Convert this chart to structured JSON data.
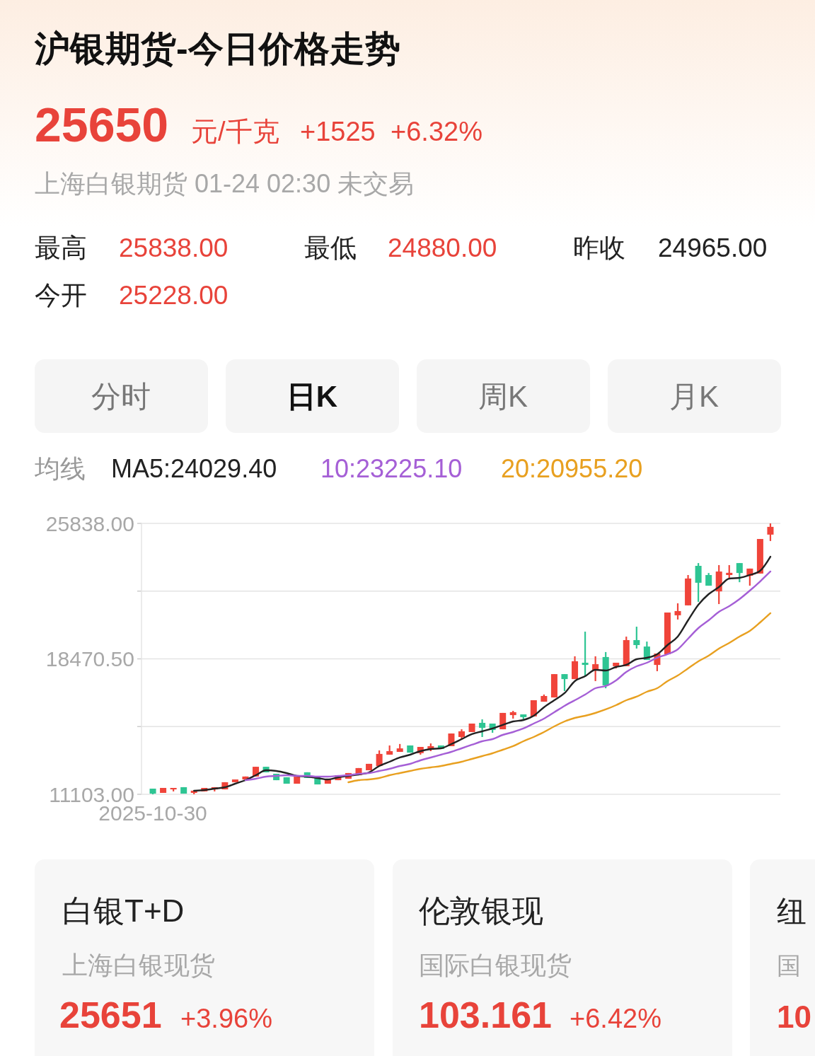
{
  "chart_data": {
    "type": "candlestick",
    "title": "沪银期货-今日价格走势",
    "categories": [
      "2025-10-30",
      null,
      null,
      null,
      null,
      null,
      null,
      null,
      null,
      null,
      null,
      null,
      null,
      null,
      null,
      null,
      null,
      null,
      null,
      null,
      null,
      null,
      null,
      null,
      null,
      null,
      null,
      null,
      null,
      null,
      null,
      null,
      null,
      null,
      null,
      null,
      null,
      null,
      null,
      null,
      null,
      null,
      null,
      null,
      null,
      null,
      null,
      null,
      null,
      null,
      null,
      null,
      null,
      null,
      null,
      null,
      null,
      null,
      null,
      null,
      null
    ],
    "ohlc": [
      [
        11410,
        11410,
        11103,
        11140
      ],
      [
        11180,
        11450,
        11180,
        11450
      ],
      [
        11370,
        11450,
        11260,
        11450
      ],
      [
        11490,
        11490,
        11140,
        11140
      ],
      [
        11180,
        11300,
        11103,
        11300
      ],
      [
        11260,
        11450,
        11260,
        11450
      ],
      [
        11370,
        11490,
        11260,
        11490
      ],
      [
        11370,
        11760,
        11370,
        11760
      ],
      [
        11760,
        11910,
        11760,
        11910
      ],
      [
        11910,
        12070,
        11910,
        12070
      ],
      [
        12070,
        12600,
        12070,
        12600
      ],
      [
        12600,
        12600,
        12300,
        12300
      ],
      [
        12220,
        12220,
        11870,
        11870
      ],
      [
        12030,
        12030,
        11680,
        11680
      ],
      [
        11680,
        12140,
        11680,
        12140
      ],
      [
        12300,
        12300,
        11990,
        11990
      ],
      [
        12070,
        12070,
        11640,
        11640
      ],
      [
        11680,
        11910,
        11680,
        11910
      ],
      [
        11870,
        12140,
        11870,
        12140
      ],
      [
        11950,
        12260,
        11950,
        12260
      ],
      [
        12140,
        12530,
        12140,
        12530
      ],
      [
        12410,
        12760,
        12410,
        12760
      ],
      [
        12640,
        13490,
        12640,
        13300
      ],
      [
        13260,
        13760,
        13260,
        13450
      ],
      [
        13410,
        13840,
        13410,
        13600
      ],
      [
        13760,
        13760,
        13370,
        13370
      ],
      [
        13340,
        13680,
        13260,
        13680
      ],
      [
        13570,
        13870,
        13450,
        13720
      ],
      [
        13760,
        13760,
        13570,
        13570
      ],
      [
        13720,
        14410,
        13720,
        14410
      ],
      [
        14220,
        14640,
        14070,
        14530
      ],
      [
        14490,
        14950,
        14490,
        14950
      ],
      [
        14990,
        15180,
        14220,
        14720
      ],
      [
        14950,
        14950,
        14450,
        14600
      ],
      [
        14640,
        15530,
        14640,
        15530
      ],
      [
        15410,
        15640,
        15220,
        15570
      ],
      [
        15450,
        15450,
        15100,
        15300
      ],
      [
        15340,
        16220,
        15340,
        16220
      ],
      [
        16140,
        16530,
        16140,
        16450
      ],
      [
        16370,
        17640,
        16370,
        17640
      ],
      [
        17640,
        17640,
        16720,
        17370
      ],
      [
        17370,
        18610,
        17370,
        18340
      ],
      [
        18260,
        19950,
        17490,
        18140
      ],
      [
        17870,
        18610,
        17260,
        18180
      ],
      [
        18570,
        18840,
        16870,
        17030
      ],
      [
        18070,
        18260,
        17950,
        18260
      ],
      [
        18070,
        19680,
        18070,
        19490
      ],
      [
        19490,
        20220,
        19030,
        19220
      ],
      [
        19140,
        19410,
        18410,
        18410
      ],
      [
        18140,
        18760,
        17800,
        18760
      ],
      [
        18720,
        20990,
        18720,
        20990
      ],
      [
        20840,
        21490,
        20610,
        21070
      ],
      [
        21380,
        23030,
        21380,
        22840
      ],
      [
        23530,
        23680,
        21570,
        22610
      ],
      [
        23030,
        23140,
        22450,
        22450
      ],
      [
        22140,
        23570,
        21450,
        23220
      ],
      [
        23030,
        23570,
        22800,
        23150
      ],
      [
        23680,
        23680,
        22640,
        23140
      ],
      [
        22990,
        23380,
        22450,
        23380
      ],
      [
        23110,
        24990,
        23110,
        24990
      ],
      [
        25228,
        25838,
        24880,
        25650
      ]
    ],
    "colors": [
      "#2ec593",
      "#f0443a",
      "#f0443a",
      "#2ec593",
      "#f0443a",
      "#f0443a",
      "#f0443a",
      "#f0443a",
      "#f0443a",
      "#f0443a",
      "#f0443a",
      "#2ec593",
      "#2ec593",
      "#2ec593",
      "#f0443a",
      "#2ec593",
      "#2ec593",
      "#f0443a",
      "#f0443a",
      "#f0443a",
      "#f0443a",
      "#f0443a",
      "#f0443a",
      "#f0443a",
      "#f0443a",
      "#2ec593",
      "#f0443a",
      "#f0443a",
      "#2ec593",
      "#f0443a",
      "#f0443a",
      "#f0443a",
      "#2ec593",
      "#2ec593",
      "#f0443a",
      "#f0443a",
      "#2ec593",
      "#f0443a",
      "#f0443a",
      "#f0443a",
      "#2ec593",
      "#f0443a",
      "#2ec593",
      "#f0443a",
      "#2ec593",
      "#f0443a",
      "#f0443a",
      "#2ec593",
      "#2ec593",
      "#f0443a",
      "#f0443a",
      "#f0443a",
      "#f0443a",
      "#2ec593",
      "#2ec593",
      "#f0443a",
      "#f0443a",
      "#2ec593",
      "#f0443a",
      "#f0443a",
      "#f0443a"
    ],
    "series": [
      {
        "type": "line",
        "name": "MA5:24029.40",
        "color": "#222222",
        "values": [
          null,
          null,
          null,
          null,
          11296,
          11334,
          11411,
          11488,
          11680,
          11873,
          12142,
          12411,
          12373,
          12258,
          12104,
          12065,
          11988,
          11911,
          12027,
          12104,
          12181,
          12296,
          12642,
          12873,
          13104,
          13258,
          13451,
          13566,
          13604,
          13835,
          14104,
          14374,
          14528,
          14682,
          14874,
          15066,
          15143,
          15374,
          15836,
          16220,
          16605,
          17259,
          17528,
          17874,
          17836,
          18028,
          18144,
          18452,
          18529,
          18721,
          19221,
          19683,
          20568,
          21414,
          21991,
          22376,
          22837,
          22876,
          23030,
          23260,
          24029.4
        ]
      },
      {
        "type": "line",
        "name": "10:23225.10",
        "color": "#a55fd6",
        "values": [
          null,
          null,
          null,
          null,
          null,
          null,
          null,
          null,
          null,
          11873,
          11950,
          12065,
          12104,
          12142,
          12104,
          12104,
          12065,
          12065,
          12104,
          12142,
          12219,
          12258,
          12373,
          12489,
          12642,
          12758,
          12950,
          13104,
          13258,
          13412,
          13604,
          13797,
          13989,
          14104,
          14335,
          14489,
          14682,
          14951,
          15220,
          15566,
          15913,
          16220,
          16528,
          16874,
          16990,
          17298,
          17759,
          18067,
          18259,
          18529,
          18721,
          18990,
          19567,
          20144,
          20567,
          21029,
          21337,
          21722,
          22183,
          22683,
          23225.1
        ]
      },
      {
        "type": "line",
        "name": "20:20955.20",
        "color": "#e8a020",
        "values": [
          null,
          null,
          null,
          null,
          null,
          null,
          null,
          null,
          null,
          null,
          null,
          null,
          null,
          null,
          null,
          null,
          null,
          null,
          null,
          11757,
          11873,
          11911,
          11988,
          12142,
          12258,
          12373,
          12489,
          12565,
          12642,
          12758,
          12873,
          13027,
          13181,
          13335,
          13527,
          13720,
          13989,
          14220,
          14489,
          14797,
          15066,
          15258,
          15374,
          15528,
          15720,
          15951,
          16220,
          16413,
          16682,
          16874,
          17259,
          17567,
          17951,
          18336,
          18644,
          19029,
          19337,
          19683,
          19991,
          20452,
          20955.2
        ]
      }
    ],
    "legend": "top left",
    "legend_title": "均线",
    "ylim": [
      11103,
      25838
    ],
    "yticks": [
      {
        "value": 25838,
        "label": "25838.00"
      },
      {
        "value": 22154.25,
        "label": null
      },
      {
        "value": 18470.5,
        "label": "18470.50"
      },
      {
        "value": 14786.75,
        "label": null
      },
      {
        "value": 11103,
        "label": "11103.00"
      }
    ],
    "grid": "y",
    "annotations": [
      "25650",
      "元/千克",
      "+1525",
      "+6.32%",
      "上海白银期货 01-24 02:30 未交易",
      "最高",
      "25838.00",
      "最低",
      "24880.00",
      "昨收",
      "24965.00",
      "今开",
      "25228.00",
      "分时",
      "日K",
      "周K",
      "月K",
      "白银T+D",
      "上海白银现货",
      "25651",
      "+3.96%",
      "伦敦银现",
      "国际白银现货",
      "103.161",
      "+6.42%",
      "纽",
      "国",
      "10"
    ]
  }
}
